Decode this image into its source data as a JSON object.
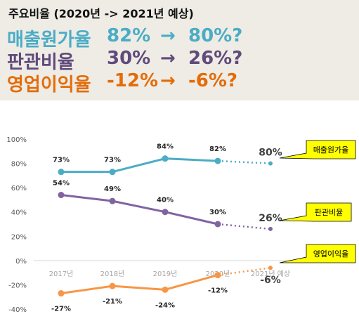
{
  "header": {
    "title": "주요비율 (2020년 -> 2021년 예상)",
    "rows": [
      {
        "label": "매출원가율",
        "from": "82%",
        "arrow": "→",
        "to": "80%?",
        "color": "#4bacc6"
      },
      {
        "label": "판관비율",
        "from": "30%",
        "arrow": "→",
        "to": "26%?",
        "color": "#604a7b"
      },
      {
        "label": "영업이익율",
        "from": "-12%",
        "arrow": "→",
        "to": "-6%?",
        "color": "#e36c0a"
      }
    ]
  },
  "chart_data": {
    "type": "line",
    "categories": [
      "2017년",
      "2018년",
      "2019년",
      "2020년",
      "2021년 예상"
    ],
    "ylim": [
      -40,
      100
    ],
    "yticks": [
      "100%",
      "80%",
      "60%",
      "40%",
      "20%",
      "0%",
      "-20%",
      "-40%"
    ],
    "ytick_values": [
      100,
      80,
      60,
      40,
      20,
      0,
      -20,
      -40
    ],
    "grid": false,
    "series": [
      {
        "name": "매출원가율",
        "values": [
          73,
          73,
          84,
          82,
          80
        ],
        "labels": [
          "73%",
          "73%",
          "84%",
          "82%",
          "80%"
        ],
        "color": "#4bacc6",
        "label_pos": "above"
      },
      {
        "name": "판관비율",
        "values": [
          54,
          49,
          40,
          30,
          26
        ],
        "labels": [
          "54%",
          "49%",
          "40%",
          "30%",
          "26%"
        ],
        "color": "#8064a2",
        "label_pos": "above"
      },
      {
        "name": "영업이익율",
        "values": [
          -27,
          -21,
          -24,
          -12,
          -6
        ],
        "labels": [
          "-27%",
          "-21%",
          "-24%",
          "-12%",
          "-6%"
        ],
        "color": "#f79646",
        "label_pos": "below"
      }
    ],
    "forecast_from_index": 3,
    "callout_color": "#ffff00"
  }
}
